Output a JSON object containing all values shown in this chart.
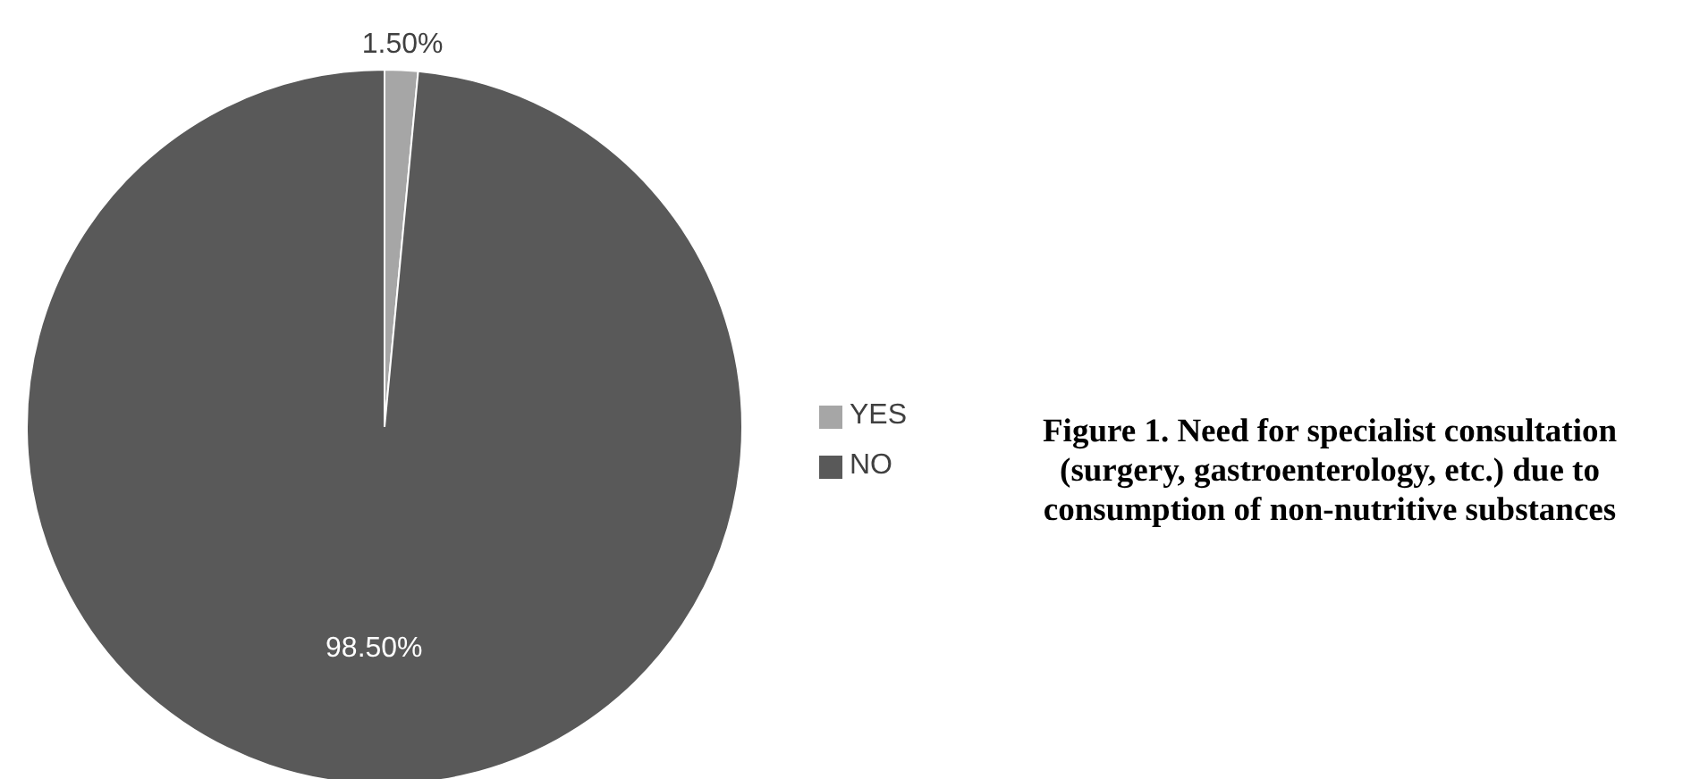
{
  "chart_data": {
    "type": "pie",
    "title": "Figure 1. Need for specialist consultation (surgery, gastroenterology, etc.) due to consumption of non-nutritive substances",
    "categories": [
      "YES",
      "NO"
    ],
    "values": [
      1.5,
      98.5
    ],
    "colors": [
      "#a6a6a6",
      "#595959"
    ],
    "value_labels": [
      "1.50%",
      "98.50%"
    ],
    "legend": "right"
  }
}
